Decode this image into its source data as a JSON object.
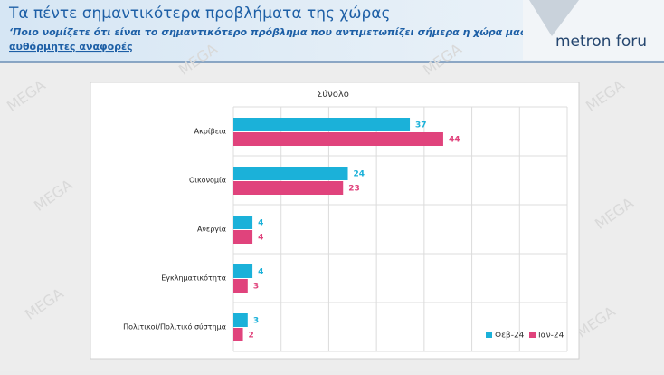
{
  "header": {
    "title": "Τα πέντε σημαντικότερα προβλήματα της χώρας",
    "subtitle": "‘Ποιο νομίζετε ότι είναι το σημαντικότερο πρόβλημα που αντιμετωπίζει σήμερα η χώρα μας;’",
    "note": "αυθόρμητες αναφορές",
    "logo": "metron foru",
    "watermark": "MEGA"
  },
  "chart_data": {
    "type": "bar",
    "orientation": "horizontal",
    "title": "Σύνολο",
    "categories": [
      "Ακρίβεια",
      "Οικονομία",
      "Ανεργία",
      "Εγκληματικότητα",
      "Πολιτικοί/Πολιτικό σύστημα"
    ],
    "series": [
      {
        "name": "Φεβ-24",
        "color": "#1bb1d9",
        "values": [
          37,
          24,
          4,
          4,
          3
        ]
      },
      {
        "name": "Ιαν-24",
        "color": "#e0437c",
        "values": [
          44,
          23,
          4,
          3,
          2
        ]
      }
    ],
    "xlim": [
      0,
      70
    ],
    "xticks": [
      0,
      10,
      20,
      30,
      40,
      50,
      60,
      70
    ],
    "grid": true,
    "legend": "lower right"
  }
}
